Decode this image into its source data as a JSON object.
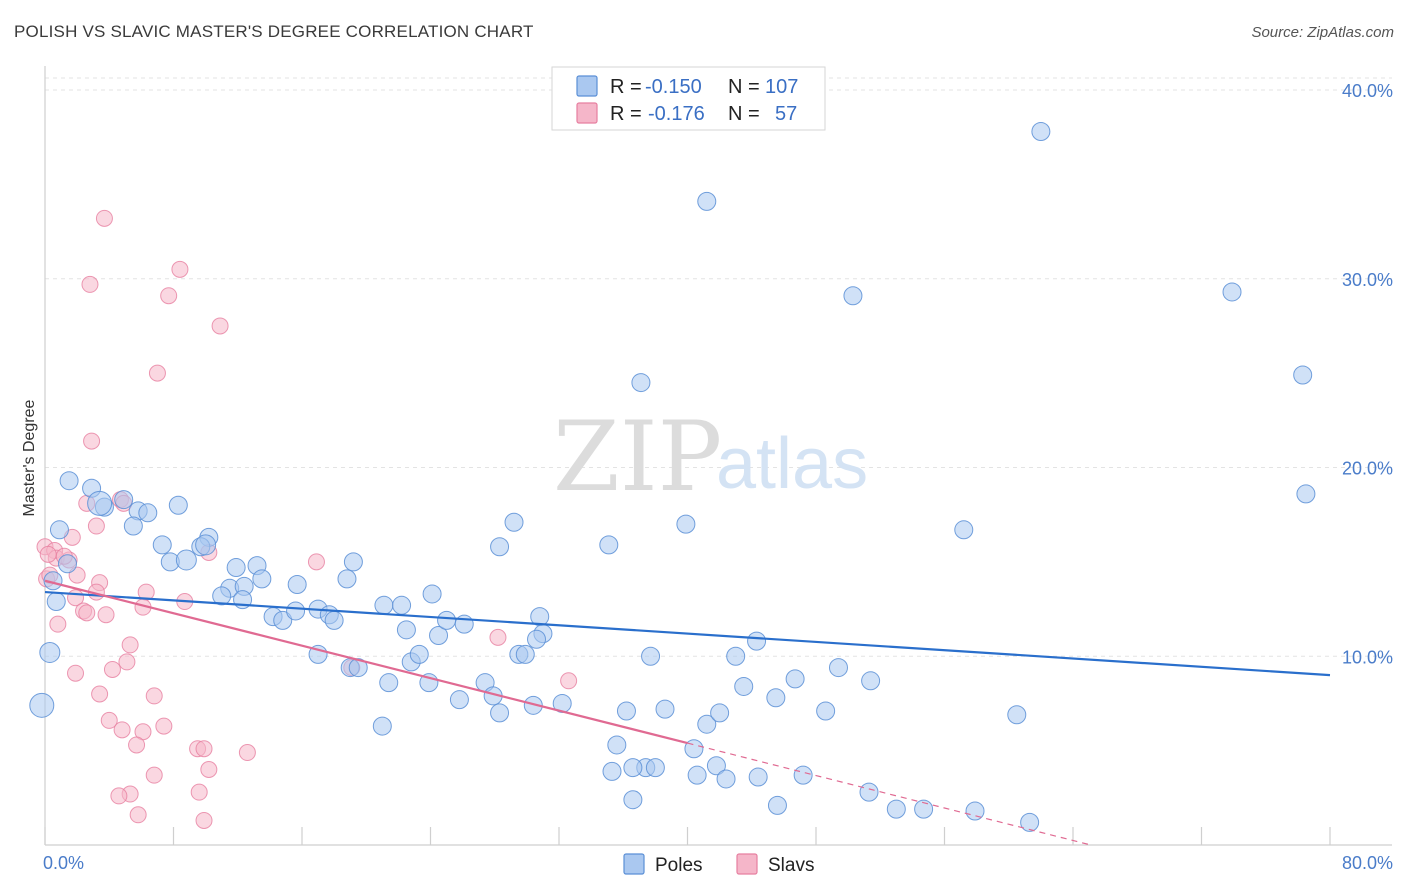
{
  "title": "POLISH VS SLAVIC MASTER'S DEGREE CORRELATION CHART",
  "source": "Source: ZipAtlas.com",
  "watermark": {
    "zip": "ZIP",
    "atlas": "atlas"
  },
  "legend_top": {
    "rows": [
      {
        "r_label": "R =",
        "r_value": "-0.150",
        "n_label": "N =",
        "n_value": "107",
        "color": "#aac8f0"
      },
      {
        "r_label": "R =",
        "r_value": "-0.176",
        "n_label": "N =",
        "n_value": "57",
        "color": "#f5b6c9"
      }
    ]
  },
  "legend_bottom": [
    {
      "name": "Poles",
      "color": "#aac8f0"
    },
    {
      "name": "Slavs",
      "color": "#f5b6c9"
    }
  ],
  "chart_data": {
    "type": "scatter",
    "ylabel": "Master's Degree",
    "xlim": [
      0,
      80
    ],
    "ylim": [
      0,
      40
    ],
    "x_tick_labels": [
      "0.0%",
      "80.0%"
    ],
    "y_tick_labels": [
      "10.0%",
      "20.0%",
      "30.0%",
      "40.0%"
    ],
    "y_ticks": [
      10,
      20,
      30,
      40
    ],
    "grid": true,
    "colors": {
      "poles": "#aac8f0",
      "poles_edge": "#5b8fd6",
      "poles_line": "#2a6fcc",
      "slavs": "#f5b6c9",
      "slavs_edge": "#e77fa0",
      "slavs_line": "#e06a92"
    },
    "series": [
      {
        "name": "Poles",
        "trend": {
          "x0": 0,
          "y0": 13.4,
          "x1": 80,
          "y1": 9.0
        },
        "points": [
          [
            62,
            37.8
          ],
          [
            41.2,
            34.1
          ],
          [
            50.3,
            29.1
          ],
          [
            73.9,
            29.3
          ],
          [
            78.3,
            24.9
          ],
          [
            37.1,
            24.5
          ],
          [
            78.5,
            18.6
          ],
          [
            57.2,
            16.7
          ],
          [
            39.9,
            17.0
          ],
          [
            35.1,
            15.9
          ],
          [
            28.3,
            15.8
          ],
          [
            29.2,
            17.1
          ],
          [
            1.5,
            19.3
          ],
          [
            2.9,
            18.9
          ],
          [
            4.9,
            18.3
          ],
          [
            8.3,
            18.0
          ],
          [
            3.7,
            17.9
          ],
          [
            5.8,
            17.7
          ],
          [
            6.4,
            17.6
          ],
          [
            0.9,
            16.7
          ],
          [
            5.5,
            16.9
          ],
          [
            10.2,
            16.3
          ],
          [
            9.7,
            15.8
          ],
          [
            7.3,
            15.9
          ],
          [
            7.8,
            15.0
          ],
          [
            11.9,
            14.7
          ],
          [
            13.2,
            14.8
          ],
          [
            19.2,
            15.0
          ],
          [
            1.4,
            14.9
          ],
          [
            11.5,
            13.6
          ],
          [
            11.0,
            13.2
          ],
          [
            12.4,
            13.7
          ],
          [
            13.5,
            14.1
          ],
          [
            15.7,
            13.8
          ],
          [
            18.8,
            14.1
          ],
          [
            24.1,
            13.3
          ],
          [
            12.3,
            13.0
          ],
          [
            0.7,
            12.9
          ],
          [
            14.2,
            12.1
          ],
          [
            14.8,
            11.9
          ],
          [
            15.6,
            12.4
          ],
          [
            17.0,
            12.5
          ],
          [
            17.7,
            12.2
          ],
          [
            18.0,
            11.9
          ],
          [
            21.1,
            12.7
          ],
          [
            22.2,
            12.7
          ],
          [
            22.5,
            11.4
          ],
          [
            24.5,
            11.1
          ],
          [
            25.0,
            11.9
          ],
          [
            26.1,
            11.7
          ],
          [
            30.8,
            12.1
          ],
          [
            31.0,
            11.2
          ],
          [
            30.6,
            10.9
          ],
          [
            17.0,
            10.1
          ],
          [
            19.0,
            9.4
          ],
          [
            19.5,
            9.4
          ],
          [
            21.4,
            8.6
          ],
          [
            22.8,
            9.7
          ],
          [
            23.3,
            10.1
          ],
          [
            23.9,
            8.6
          ],
          [
            25.8,
            7.7
          ],
          [
            27.4,
            8.6
          ],
          [
            27.9,
            7.9
          ],
          [
            28.3,
            7.0
          ],
          [
            29.5,
            10.1
          ],
          [
            29.9,
            10.1
          ],
          [
            30.4,
            7.4
          ],
          [
            32.2,
            7.5
          ],
          [
            37.7,
            10.0
          ],
          [
            43.0,
            10.0
          ],
          [
            44.3,
            10.8
          ],
          [
            43.5,
            8.4
          ],
          [
            45.5,
            7.8
          ],
          [
            46.7,
            8.8
          ],
          [
            49.4,
            9.4
          ],
          [
            51.4,
            8.7
          ],
          [
            36.2,
            7.1
          ],
          [
            38.6,
            7.2
          ],
          [
            41.2,
            6.4
          ],
          [
            42.0,
            7.0
          ],
          [
            48.6,
            7.1
          ],
          [
            21.0,
            6.3
          ],
          [
            37.4,
            4.1
          ],
          [
            35.6,
            5.3
          ],
          [
            35.3,
            3.9
          ],
          [
            36.6,
            4.1
          ],
          [
            38.0,
            4.1
          ],
          [
            40.4,
            5.1
          ],
          [
            40.6,
            3.7
          ],
          [
            41.8,
            4.2
          ],
          [
            42.4,
            3.5
          ],
          [
            44.4,
            3.6
          ],
          [
            45.6,
            2.1
          ],
          [
            47.2,
            3.7
          ],
          [
            51.3,
            2.8
          ],
          [
            53.0,
            1.9
          ],
          [
            54.7,
            1.9
          ],
          [
            57.9,
            1.8
          ],
          [
            61.3,
            1.2
          ],
          [
            60.5,
            6.9
          ],
          [
            36.6,
            2.4
          ],
          [
            0.5,
            14.0
          ],
          [
            0.3,
            10.2
          ],
          [
            -0.2,
            7.4
          ],
          [
            3.4,
            18.1
          ],
          [
            8.8,
            15.1
          ],
          [
            10.0,
            15.9
          ]
        ]
      },
      {
        "name": "Slavs",
        "trend": {
          "x0": 0,
          "y0": 14.0,
          "x1": 40,
          "y1": 5.4,
          "dash_x1": 80,
          "dash_y1": -3.2
        },
        "points": [
          [
            3.7,
            33.2
          ],
          [
            2.8,
            29.7
          ],
          [
            8.4,
            30.5
          ],
          [
            7.7,
            29.1
          ],
          [
            10.9,
            27.5
          ],
          [
            7.0,
            25.0
          ],
          [
            2.9,
            21.4
          ],
          [
            2.6,
            18.1
          ],
          [
            4.7,
            18.3
          ],
          [
            4.9,
            18.1
          ],
          [
            1.7,
            16.3
          ],
          [
            3.2,
            16.9
          ],
          [
            0.0,
            15.8
          ],
          [
            0.6,
            15.6
          ],
          [
            0.7,
            15.2
          ],
          [
            1.5,
            15.1
          ],
          [
            10.2,
            15.5
          ],
          [
            16.9,
            15.0
          ],
          [
            0.1,
            14.1
          ],
          [
            0.3,
            14.3
          ],
          [
            2.0,
            14.3
          ],
          [
            3.4,
            13.9
          ],
          [
            3.2,
            13.4
          ],
          [
            1.9,
            13.1
          ],
          [
            6.3,
            13.4
          ],
          [
            8.7,
            12.9
          ],
          [
            2.4,
            12.4
          ],
          [
            2.6,
            12.3
          ],
          [
            3.8,
            12.2
          ],
          [
            0.8,
            11.7
          ],
          [
            6.1,
            12.6
          ],
          [
            28.2,
            11.0
          ],
          [
            5.3,
            10.6
          ],
          [
            5.1,
            9.7
          ],
          [
            4.2,
            9.3
          ],
          [
            1.9,
            9.1
          ],
          [
            19.1,
            9.4
          ],
          [
            32.6,
            8.7
          ],
          [
            3.4,
            8.0
          ],
          [
            6.8,
            7.9
          ],
          [
            4.0,
            6.6
          ],
          [
            4.8,
            6.1
          ],
          [
            6.1,
            6.0
          ],
          [
            7.4,
            6.3
          ],
          [
            5.7,
            5.3
          ],
          [
            9.5,
            5.1
          ],
          [
            9.9,
            5.1
          ],
          [
            12.6,
            4.9
          ],
          [
            6.8,
            3.7
          ],
          [
            10.2,
            4.0
          ],
          [
            5.3,
            2.7
          ],
          [
            4.6,
            2.6
          ],
          [
            9.6,
            2.8
          ],
          [
            5.8,
            1.6
          ],
          [
            9.9,
            1.3
          ],
          [
            0.2,
            15.4
          ],
          [
            1.2,
            15.3
          ]
        ]
      }
    ]
  }
}
